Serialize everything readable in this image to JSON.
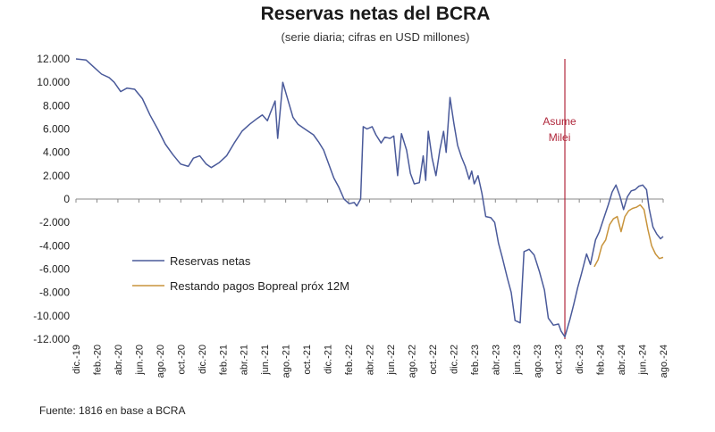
{
  "chart_data": {
    "type": "line",
    "title": "Reservas netas del BCRA",
    "subtitle": "(serie diaria; cifras en USD millones)",
    "ylim": [
      -12000,
      12000
    ],
    "yticks": [
      12000,
      10000,
      8000,
      6000,
      4000,
      2000,
      0,
      -2000,
      -4000,
      -6000,
      -8000,
      -10000,
      -12000
    ],
    "ytick_labels": [
      "12.000",
      "10.000",
      "8.000",
      "6.000",
      "4.000",
      "2.000",
      "0",
      "-2.000",
      "-4.000",
      "-6.000",
      "-8.000",
      "-10.000",
      "-12.000"
    ],
    "xticks": [
      "dic.-19",
      "feb.-20",
      "abr.-20",
      "jun.-20",
      "ago.-20",
      "oct.-20",
      "dic.-20",
      "feb.-21",
      "abr.-21",
      "jun.-21",
      "ago.-21",
      "oct.-21",
      "dic.-21",
      "feb.-22",
      "abr.-22",
      "jun.-22",
      "ago.-22",
      "oct.-22",
      "dic.-22",
      "feb.-23",
      "abr.-23",
      "jun.-23",
      "ago.-23",
      "oct.-23",
      "dic.-23",
      "feb.-24",
      "abr.-24",
      "jun.-24",
      "ago.-24"
    ],
    "grid": false,
    "legend": "center-left",
    "series": [
      {
        "name": "Reservas netas",
        "color": "#4a5a9a",
        "points": [
          [
            0,
            12000
          ],
          [
            0.8,
            11900
          ],
          [
            1.4,
            11300
          ],
          [
            2.0,
            10700
          ],
          [
            2.6,
            10400
          ],
          [
            3.0,
            10000
          ],
          [
            3.5,
            9200
          ],
          [
            4.0,
            9500
          ],
          [
            4.6,
            9400
          ],
          [
            5.2,
            8600
          ],
          [
            5.8,
            7200
          ],
          [
            6.4,
            6000
          ],
          [
            7.0,
            4700
          ],
          [
            7.6,
            3800
          ],
          [
            8.2,
            3000
          ],
          [
            8.8,
            2800
          ],
          [
            9.2,
            3500
          ],
          [
            9.7,
            3700
          ],
          [
            10.2,
            3000
          ],
          [
            10.6,
            2700
          ],
          [
            11.2,
            3100
          ],
          [
            11.8,
            3700
          ],
          [
            12.4,
            4800
          ],
          [
            13.0,
            5800
          ],
          [
            13.6,
            6400
          ],
          [
            14.2,
            6900
          ],
          [
            14.6,
            7200
          ],
          [
            15.0,
            6700
          ],
          [
            15.2,
            7300
          ],
          [
            15.6,
            8400
          ],
          [
            15.8,
            5200
          ],
          [
            16.2,
            10000
          ],
          [
            16.6,
            8500
          ],
          [
            17.0,
            7000
          ],
          [
            17.4,
            6400
          ],
          [
            17.8,
            6100
          ],
          [
            18.2,
            5800
          ],
          [
            18.6,
            5500
          ],
          [
            19.0,
            4900
          ],
          [
            19.4,
            4200
          ],
          [
            19.8,
            3000
          ],
          [
            20.2,
            1800
          ],
          [
            20.6,
            1000
          ],
          [
            21.0,
            0
          ],
          [
            21.4,
            -400
          ],
          [
            21.8,
            -300
          ],
          [
            22.0,
            -600
          ],
          [
            22.3,
            0
          ],
          [
            22.5,
            6200
          ],
          [
            22.8,
            6000
          ],
          [
            23.2,
            6200
          ],
          [
            23.5,
            5500
          ],
          [
            23.9,
            4800
          ],
          [
            24.2,
            5300
          ],
          [
            24.6,
            5200
          ],
          [
            24.9,
            5400
          ],
          [
            25.2,
            2000
          ],
          [
            25.5,
            5600
          ],
          [
            25.9,
            4200
          ],
          [
            26.2,
            2200
          ],
          [
            26.5,
            1300
          ],
          [
            26.9,
            1400
          ],
          [
            27.2,
            3700
          ],
          [
            27.4,
            1600
          ],
          [
            27.6,
            5800
          ],
          [
            27.9,
            3500
          ],
          [
            28.2,
            2000
          ],
          [
            28.5,
            4200
          ],
          [
            28.8,
            5800
          ],
          [
            29.0,
            4000
          ],
          [
            29.3,
            8700
          ],
          [
            29.6,
            6500
          ],
          [
            29.9,
            4600
          ],
          [
            30.2,
            3600
          ],
          [
            30.5,
            2800
          ],
          [
            30.8,
            1700
          ],
          [
            31.0,
            2400
          ],
          [
            31.2,
            1300
          ],
          [
            31.5,
            2000
          ],
          [
            31.8,
            500
          ],
          [
            32.1,
            -1500
          ],
          [
            32.5,
            -1600
          ],
          [
            32.8,
            -2000
          ],
          [
            33.1,
            -3800
          ],
          [
            33.4,
            -5000
          ],
          [
            33.8,
            -6800
          ],
          [
            34.1,
            -8000
          ],
          [
            34.4,
            -10400
          ],
          [
            34.8,
            -10600
          ],
          [
            35.1,
            -4500
          ],
          [
            35.5,
            -4300
          ],
          [
            35.9,
            -4800
          ],
          [
            36.3,
            -6200
          ],
          [
            36.7,
            -7800
          ],
          [
            37.0,
            -10200
          ],
          [
            37.4,
            -10800
          ],
          [
            37.8,
            -10700
          ],
          [
            38.0,
            -11300
          ],
          [
            38.3,
            -11800
          ],
          [
            38.7,
            -10300
          ],
          [
            39.0,
            -9000
          ],
          [
            39.3,
            -7600
          ],
          [
            39.6,
            -6400
          ],
          [
            40.0,
            -4700
          ],
          [
            40.3,
            -5600
          ],
          [
            40.7,
            -3500
          ],
          [
            41.0,
            -2800
          ],
          [
            41.3,
            -1800
          ],
          [
            41.7,
            -500
          ],
          [
            42.0,
            600
          ],
          [
            42.3,
            1200
          ],
          [
            42.6,
            300
          ],
          [
            42.9,
            -900
          ],
          [
            43.2,
            200
          ],
          [
            43.5,
            700
          ],
          [
            43.8,
            800
          ],
          [
            44.1,
            1100
          ],
          [
            44.4,
            1200
          ],
          [
            44.7,
            800
          ],
          [
            44.9,
            -800
          ],
          [
            45.2,
            -2400
          ],
          [
            45.5,
            -3000
          ],
          [
            45.8,
            -3400
          ],
          [
            46.0,
            -3200
          ]
        ]
      },
      {
        "name": "Restando pagos Bopreal próx 12M",
        "color": "#c8943c",
        "points": [
          [
            40.6,
            -5800
          ],
          [
            40.9,
            -5200
          ],
          [
            41.2,
            -4000
          ],
          [
            41.5,
            -3500
          ],
          [
            41.8,
            -2200
          ],
          [
            42.1,
            -1700
          ],
          [
            42.4,
            -1500
          ],
          [
            42.7,
            -2800
          ],
          [
            43.0,
            -1500
          ],
          [
            43.3,
            -1000
          ],
          [
            43.6,
            -800
          ],
          [
            43.9,
            -700
          ],
          [
            44.2,
            -500
          ],
          [
            44.5,
            -900
          ],
          [
            44.8,
            -2600
          ],
          [
            45.1,
            -4000
          ],
          [
            45.4,
            -4700
          ],
          [
            45.7,
            -5100
          ],
          [
            46.0,
            -5000
          ]
        ]
      }
    ],
    "annotations": [
      {
        "text_lines": [
          "Asume",
          "Milei"
        ],
        "x_index": 38.3,
        "color": "#b0283c"
      }
    ],
    "source": "Fuente: 1816 en base a BCRA"
  }
}
